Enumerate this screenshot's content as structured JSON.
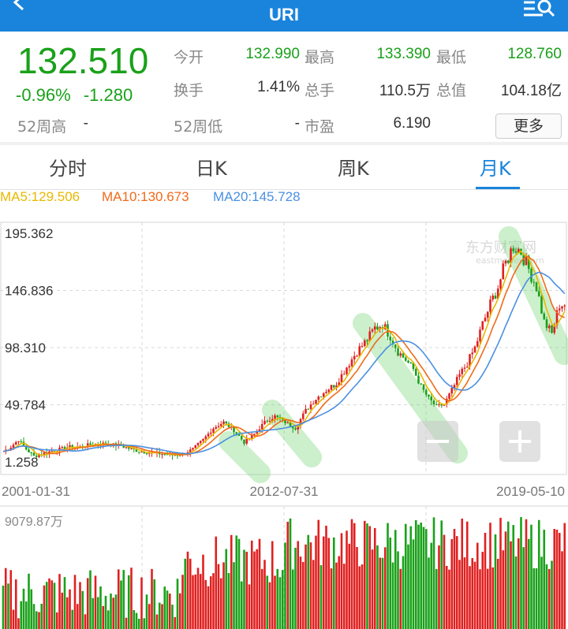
{
  "header": {
    "title": "URI",
    "back_icon": "chevron-left-icon",
    "menu_icon": "menu-search-icon"
  },
  "quote": {
    "price": "132.510",
    "change_pct": "-0.96%",
    "change_abs": "-1.280",
    "open_label": "今开",
    "open": "132.990",
    "high_label": "最高",
    "high": "133.390",
    "low_label": "最低",
    "low": "128.760",
    "turnover_label": "换手",
    "turnover": "1.41%",
    "volume_label": "总手",
    "volume": "110.5万",
    "mktcap_label": "总值",
    "mktcap": "104.18亿",
    "w52high_label": "52周高",
    "w52high": "-",
    "w52low_label": "52周低",
    "w52low": "-",
    "pe_label": "市盈",
    "pe": "6.190",
    "more_button": "更多"
  },
  "tabs": [
    {
      "label": "分时",
      "active": false
    },
    {
      "label": "日K",
      "active": false
    },
    {
      "label": "周K",
      "active": false
    },
    {
      "label": "月K",
      "active": true
    }
  ],
  "indicators": {
    "ma5": "MA5:129.506",
    "ma10": "MA10:130.673",
    "ma20": "MA20:145.728",
    "ma5_color": "#e8b800",
    "ma10_color": "#f06a1a",
    "ma20_color": "#4a90e2"
  },
  "watermark": {
    "brand": "东方财富网",
    "domain": "eastmoney.com"
  },
  "colors": {
    "up": "#e02020",
    "down": "#1aa11a",
    "accent": "#1a84dc"
  },
  "chart_data": {
    "type": "candlestick",
    "y_ticks": [
      "195.362",
      "146.836",
      "98.310",
      "49.784",
      "1.258"
    ],
    "ylim": [
      1.258,
      195.362
    ],
    "x_ticks": [
      "2001-01-31",
      "2012-07-31",
      "2019-05-10"
    ],
    "volume_max_label": "9079.87万",
    "close_trend": [
      [
        0,
        10
      ],
      [
        3,
        14
      ],
      [
        6,
        20
      ],
      [
        9,
        12
      ],
      [
        12,
        6
      ],
      [
        15,
        8
      ],
      [
        18,
        10
      ],
      [
        22,
        12
      ],
      [
        26,
        14
      ],
      [
        30,
        14
      ],
      [
        34,
        16
      ],
      [
        38,
        17
      ],
      [
        42,
        16
      ],
      [
        46,
        15
      ],
      [
        50,
        12
      ],
      [
        54,
        10
      ],
      [
        58,
        9
      ],
      [
        62,
        8
      ],
      [
        66,
        7
      ],
      [
        70,
        8
      ],
      [
        74,
        12
      ],
      [
        78,
        20
      ],
      [
        82,
        30
      ],
      [
        86,
        35
      ],
      [
        90,
        28
      ],
      [
        94,
        18
      ],
      [
        98,
        25
      ],
      [
        102,
        35
      ],
      [
        106,
        40
      ],
      [
        110,
        35
      ],
      [
        114,
        30
      ],
      [
        118,
        45
      ],
      [
        122,
        55
      ],
      [
        126,
        62
      ],
      [
        130,
        68
      ],
      [
        134,
        82
      ],
      [
        138,
        95
      ],
      [
        142,
        105
      ],
      [
        145,
        115
      ],
      [
        148,
        118
      ],
      [
        151,
        108
      ],
      [
        154,
        95
      ],
      [
        157,
        88
      ],
      [
        160,
        80
      ],
      [
        163,
        65
      ],
      [
        166,
        55
      ],
      [
        169,
        48
      ],
      [
        172,
        50
      ],
      [
        175,
        62
      ],
      [
        178,
        75
      ],
      [
        181,
        85
      ],
      [
        184,
        98
      ],
      [
        187,
        118
      ],
      [
        190,
        135
      ],
      [
        193,
        150
      ],
      [
        196,
        170
      ],
      [
        199,
        185
      ],
      [
        202,
        180
      ],
      [
        205,
        165
      ],
      [
        208,
        150
      ],
      [
        211,
        120
      ],
      [
        214,
        110
      ],
      [
        217,
        135
      ]
    ]
  }
}
